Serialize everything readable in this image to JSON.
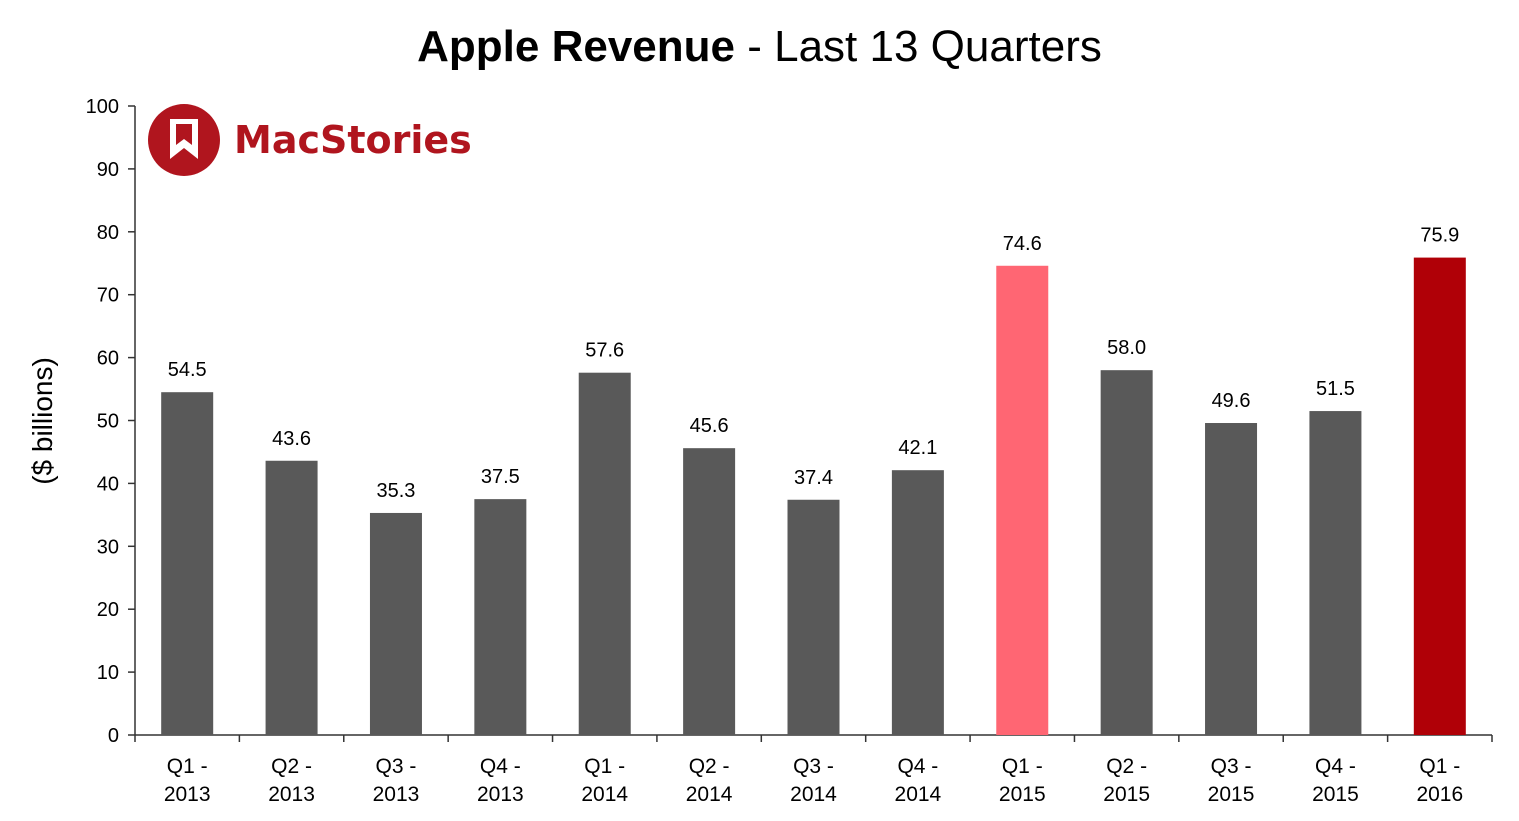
{
  "chart_data": {
    "type": "bar",
    "title_bold": "Apple Revenue",
    "title_rest": " - Last 13 Quarters",
    "ylabel": "($ billions)",
    "xlabel": "",
    "ylim": [
      0,
      100
    ],
    "yticks": [
      "0",
      "10",
      "20",
      "30",
      "40",
      "50",
      "60",
      "70",
      "80",
      "90",
      "100"
    ],
    "categories": [
      [
        "Q1 -",
        "2013"
      ],
      [
        "Q2 -",
        "2013"
      ],
      [
        "Q3 -",
        "2013"
      ],
      [
        "Q4 -",
        "2013"
      ],
      [
        "Q1 -",
        "2014"
      ],
      [
        "Q2 -",
        "2014"
      ],
      [
        "Q3 -",
        "2014"
      ],
      [
        "Q4 -",
        "2014"
      ],
      [
        "Q1 -",
        "2015"
      ],
      [
        "Q2 -",
        "2015"
      ],
      [
        "Q3 -",
        "2015"
      ],
      [
        "Q4 -",
        "2015"
      ],
      [
        "Q1 -",
        "2016"
      ]
    ],
    "values": [
      54.5,
      43.6,
      35.3,
      37.5,
      57.6,
      45.6,
      37.4,
      42.1,
      74.6,
      58.0,
      49.6,
      51.5,
      75.9
    ],
    "value_labels": [
      "54.5",
      "43.6",
      "35.3",
      "37.5",
      "57.6",
      "45.6",
      "37.4",
      "42.1",
      "74.6",
      "58.0",
      "49.6",
      "51.5",
      "75.9"
    ],
    "bar_colors": [
      "#595959",
      "#595959",
      "#595959",
      "#595959",
      "#595959",
      "#595959",
      "#595959",
      "#595959",
      "#ff6673",
      "#595959",
      "#595959",
      "#595959",
      "#b00007"
    ],
    "grid": false,
    "legend": "none"
  },
  "brand": {
    "name": "MacStories",
    "color": "#b0151e",
    "icon": "bookmark-icon"
  }
}
